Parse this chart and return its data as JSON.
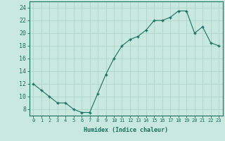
{
  "x": [
    0,
    1,
    2,
    3,
    4,
    5,
    6,
    7,
    8,
    9,
    10,
    11,
    12,
    13,
    14,
    15,
    16,
    17,
    18,
    19,
    20,
    21,
    22,
    23
  ],
  "y": [
    12,
    11,
    10,
    9,
    9,
    8,
    7.5,
    7.5,
    10.5,
    13.5,
    16,
    18,
    19,
    19.5,
    20.5,
    22,
    22,
    22.5,
    23.5,
    23.5,
    20,
    21,
    18.5,
    18
  ],
  "line_color": "#1a7060",
  "marker_color": "#1a7060",
  "bg_color": "#c8e8e0",
  "grid_color": "#b0d4cc",
  "xlabel": "Humidex (Indice chaleur)",
  "ylabel_ticks": [
    8,
    10,
    12,
    14,
    16,
    18,
    20,
    22,
    24
  ],
  "xlim": [
    -0.5,
    23.5
  ],
  "ylim": [
    7,
    25
  ],
  "xtick_labels": [
    "0",
    "1",
    "2",
    "3",
    "4",
    "5",
    "6",
    "7",
    "8",
    "9",
    "10",
    "11",
    "12",
    "13",
    "14",
    "15",
    "16",
    "17",
    "18",
    "19",
    "20",
    "21",
    "22",
    "23"
  ],
  "axis_color": "#1a7060",
  "font_color": "#1a7060"
}
